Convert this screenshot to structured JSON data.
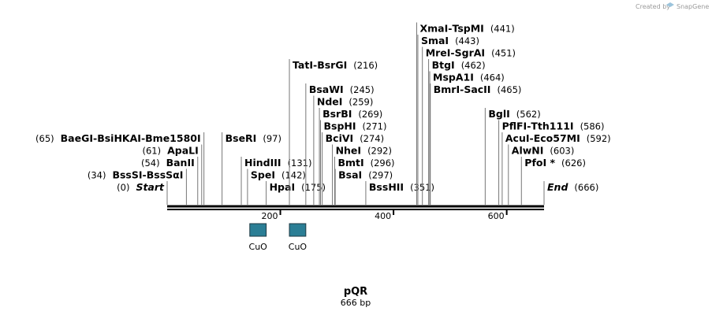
{
  "credit": {
    "text": "Created by",
    "brand": "SnapGene"
  },
  "plasmid": {
    "name": "pQR",
    "length_label": "666 bp",
    "length": 666
  },
  "ticks": [
    {
      "value": 200,
      "label": "200"
    },
    {
      "value": 400,
      "label": "400"
    },
    {
      "value": 600,
      "label": "600"
    }
  ],
  "features": [
    {
      "label": "CuO",
      "start": 146,
      "end": 175
    },
    {
      "label": "CuO",
      "start": 216,
      "end": 245
    }
  ],
  "sites": [
    {
      "names": [
        "Start"
      ],
      "pos": 0,
      "pos_label": "(0)",
      "italic": true,
      "row": 0,
      "side": "left"
    },
    {
      "names": [
        "BssSI",
        "BssSαI"
      ],
      "pos": 34,
      "pos_label": "(34)",
      "row": 1,
      "side": "left"
    },
    {
      "names": [
        "BanII"
      ],
      "pos": 54,
      "pos_label": "(54)",
      "row": 2,
      "side": "left"
    },
    {
      "names": [
        "ApaLI"
      ],
      "pos": 61,
      "pos_label": "(61)",
      "row": 3,
      "side": "left"
    },
    {
      "names": [
        "BaeGI",
        "BsiHKAI",
        "Bme1580I"
      ],
      "pos": 65,
      "pos_label": "(65)",
      "row": 4,
      "side": "left"
    },
    {
      "names": [
        "BseRI"
      ],
      "pos": 97,
      "pos_label": "(97)",
      "row": 4,
      "side": "right"
    },
    {
      "names": [
        "SpeI"
      ],
      "pos": 142,
      "pos_label": "(142)",
      "row": 1,
      "side": "right"
    },
    {
      "names": [
        "HindIII"
      ],
      "pos": 131,
      "pos_label": "(131)",
      "row": 2,
      "side": "right"
    },
    {
      "names": [
        "HpaI"
      ],
      "pos": 175,
      "pos_label": "(175)",
      "row": 0,
      "side": "right"
    },
    {
      "names": [
        "TatI",
        "BsrGI"
      ],
      "pos": 216,
      "pos_label": "(216)",
      "row": 10,
      "side": "right"
    },
    {
      "names": [
        "BsaWI"
      ],
      "pos": 245,
      "pos_label": "(245)",
      "row": 8,
      "side": "right"
    },
    {
      "names": [
        "NdeI"
      ],
      "pos": 259,
      "pos_label": "(259)",
      "row": 7,
      "side": "right"
    },
    {
      "names": [
        "BsrBI"
      ],
      "pos": 269,
      "pos_label": "(269)",
      "row": 6,
      "side": "right"
    },
    {
      "names": [
        "BspHI"
      ],
      "pos": 271,
      "pos_label": "(271)",
      "row": 5,
      "side": "right"
    },
    {
      "names": [
        "BciVI"
      ],
      "pos": 274,
      "pos_label": "(274)",
      "row": 4,
      "side": "right"
    },
    {
      "names": [
        "NheI"
      ],
      "pos": 292,
      "pos_label": "(292)",
      "row": 3,
      "side": "right"
    },
    {
      "names": [
        "BmtI"
      ],
      "pos": 296,
      "pos_label": "(296)",
      "row": 2,
      "side": "right"
    },
    {
      "names": [
        "BsaI"
      ],
      "pos": 297,
      "pos_label": "(297)",
      "row": 1,
      "side": "right"
    },
    {
      "names": [
        "BssHII"
      ],
      "pos": 351,
      "pos_label": "(351)",
      "row": 0,
      "side": "right"
    },
    {
      "names": [
        "XmaI",
        "TspMI"
      ],
      "pos": 441,
      "pos_label": "(441)",
      "row": 13,
      "side": "right"
    },
    {
      "names": [
        "SmaI"
      ],
      "pos": 443,
      "pos_label": "(443)",
      "row": 12,
      "side": "right"
    },
    {
      "names": [
        "MreI",
        "SgrAI"
      ],
      "pos": 451,
      "pos_label": "(451)",
      "row": 11,
      "side": "right"
    },
    {
      "names": [
        "BtgI"
      ],
      "pos": 462,
      "pos_label": "(462)",
      "row": 10,
      "side": "right"
    },
    {
      "names": [
        "MspA1I"
      ],
      "pos": 464,
      "pos_label": "(464)",
      "row": 9,
      "side": "right"
    },
    {
      "names": [
        "BmrI",
        "SacII"
      ],
      "pos": 465,
      "pos_label": "(465)",
      "row": 8,
      "side": "right"
    },
    {
      "names": [
        "BglI"
      ],
      "pos": 562,
      "pos_label": "(562)",
      "row": 6,
      "side": "right"
    },
    {
      "names": [
        "PflFI",
        "Tth111I"
      ],
      "pos": 586,
      "pos_label": "(586)",
      "row": 5,
      "side": "right"
    },
    {
      "names": [
        "AcuI",
        "Eco57MI"
      ],
      "pos": 592,
      "pos_label": "(592)",
      "row": 4,
      "side": "right"
    },
    {
      "names": [
        "AlwNI"
      ],
      "pos": 603,
      "pos_label": "(603)",
      "row": 3,
      "side": "right"
    },
    {
      "names": [
        "PfoI *"
      ],
      "pos": 626,
      "pos_label": "(626)",
      "row": 2,
      "side": "right"
    },
    {
      "names": [
        "End"
      ],
      "pos": 666,
      "pos_label": "(666)",
      "italic": true,
      "row": 0,
      "side": "right"
    }
  ]
}
